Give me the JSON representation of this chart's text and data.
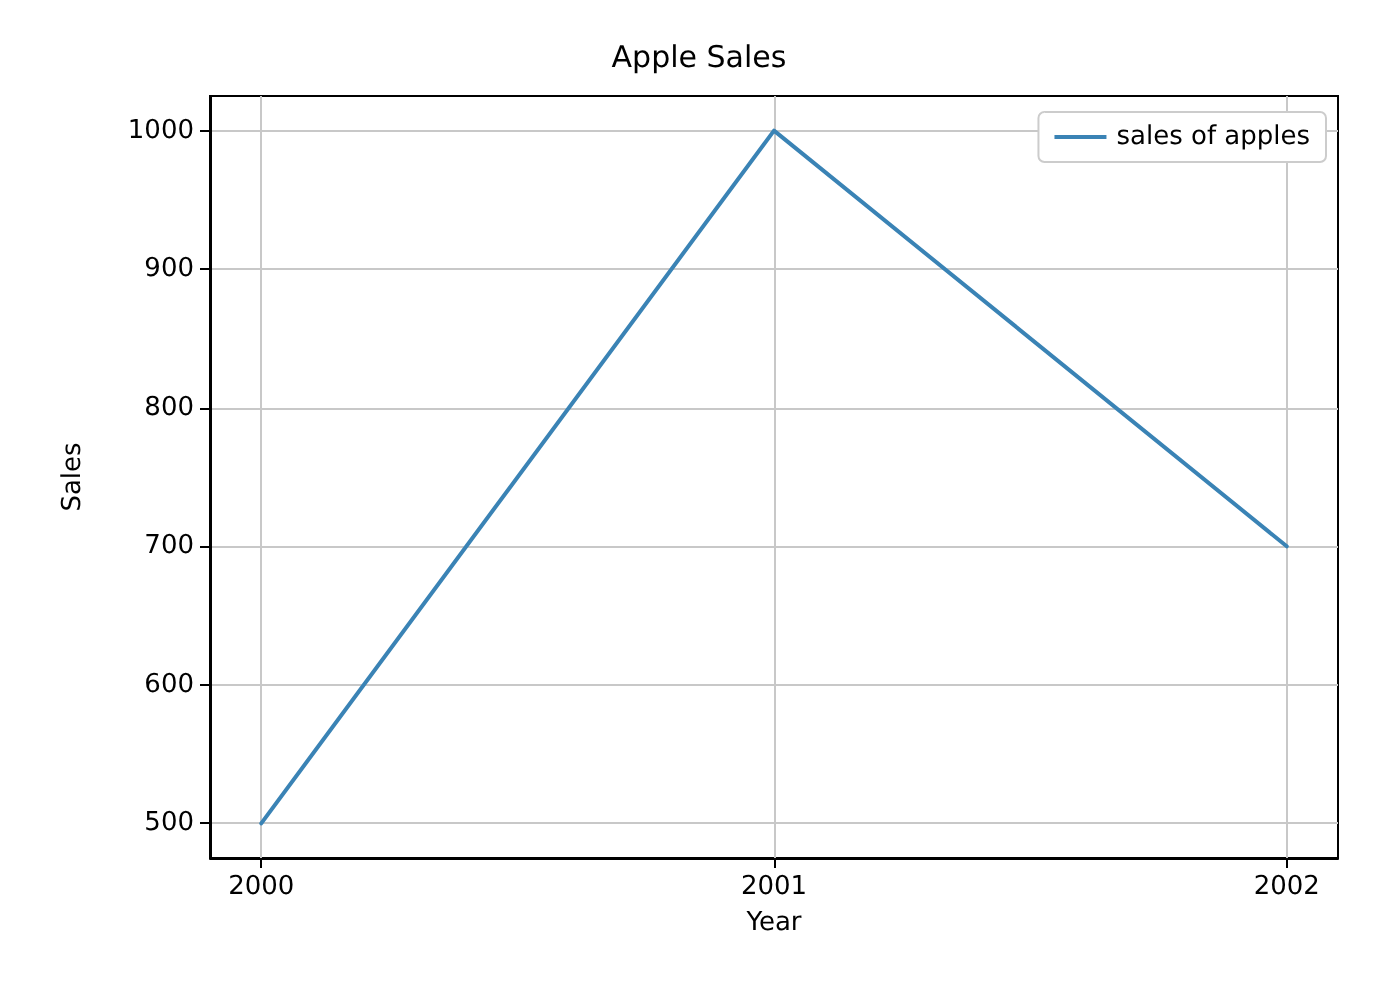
{
  "chart_data": {
    "type": "line",
    "title": "Apple Sales",
    "xlabel": "Year",
    "ylabel": "Sales",
    "x": [
      2000,
      2001,
      2002
    ],
    "series": [
      {
        "name": "sales of apples",
        "color": "#3a83b5",
        "values": [
          500,
          1000,
          700
        ]
      }
    ],
    "xlim": [
      1999.9,
      2002.1
    ],
    "xticks": [
      2000,
      2001,
      2002
    ],
    "ylim": [
      475,
      1025
    ],
    "yticks": [
      500,
      600,
      700,
      800,
      900,
      1000
    ],
    "grid": true,
    "legend": "top right",
    "marker": "none",
    "line_style": "solid"
  }
}
